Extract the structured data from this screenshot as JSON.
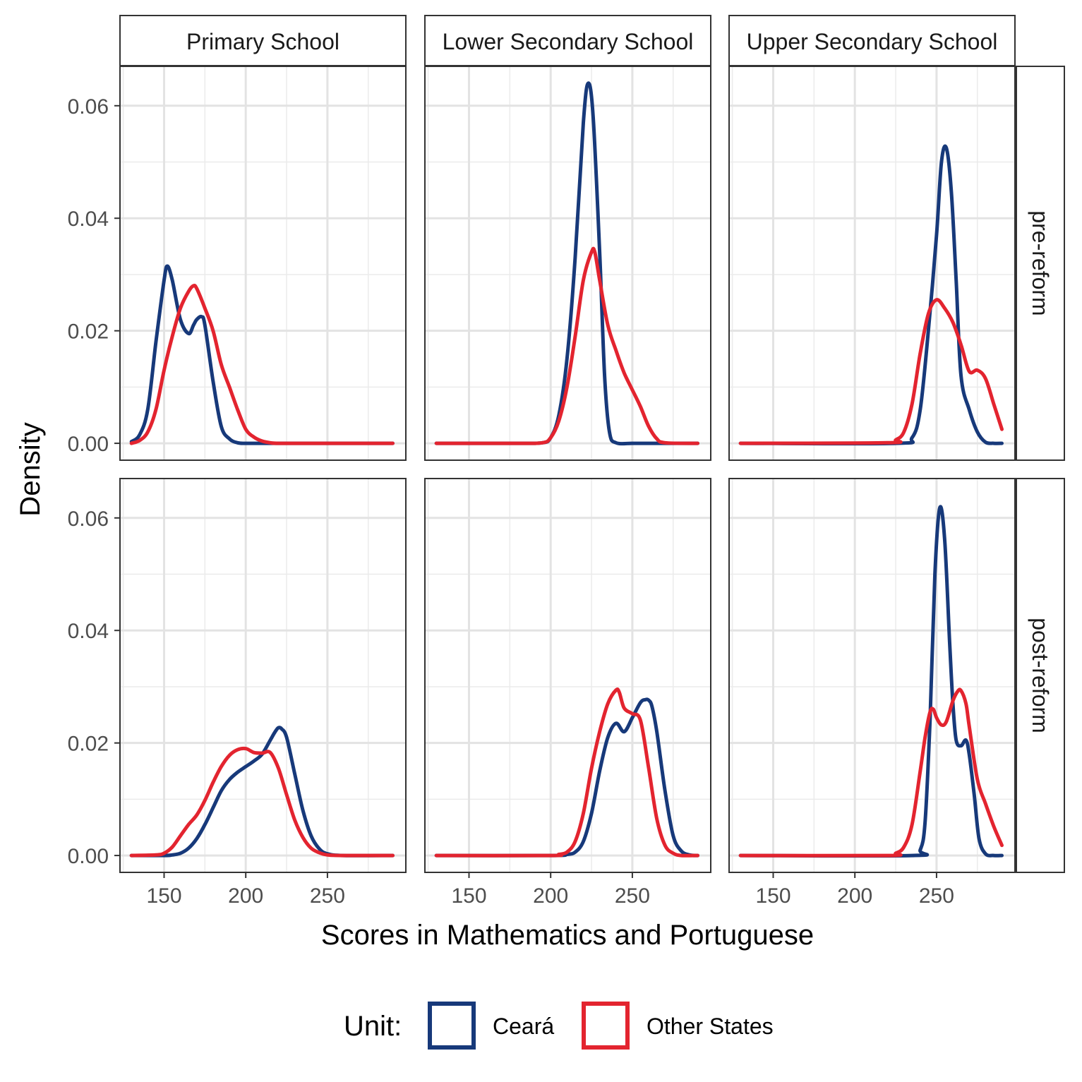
{
  "chart_data": {
    "type": "line",
    "subtype": "density-facets",
    "xlabel": "Scores in Mathematics and Portuguese",
    "ylabel": "Density",
    "xlim": [
      123,
      298
    ],
    "ylim": [
      -0.003,
      0.067
    ],
    "x_ticks": [
      150,
      200,
      250
    ],
    "x_tick_labels": [
      "150",
      "200",
      "250"
    ],
    "y_ticks": [
      0,
      0.02,
      0.04,
      0.06
    ],
    "y_tick_labels": [
      "0.00",
      "0.02",
      "0.04",
      "0.06"
    ],
    "columns": [
      "Primary School",
      "Lower Secondary School",
      "Upper Secondary School"
    ],
    "rows": [
      "pre-reform",
      "post-reform"
    ],
    "grid": true,
    "legend": {
      "title": "Unit:",
      "position": "bottom",
      "entries": [
        {
          "name": "Ceará",
          "color": "#17397a"
        },
        {
          "name": "Other States",
          "color": "#e3242f"
        }
      ]
    },
    "panels": [
      {
        "column": "Primary School",
        "row": "pre-reform",
        "series": [
          {
            "name": "Ceará",
            "x": [
              130,
              135,
              140,
              145,
              150,
              152,
              155,
              160,
              165,
              168,
              170,
              173,
              175,
              180,
              185,
              190,
              195,
              200,
              210,
              220,
              240,
              260,
              290
            ],
            "y": [
              0.0003,
              0.0015,
              0.006,
              0.018,
              0.029,
              0.0315,
              0.029,
              0.022,
              0.0195,
              0.021,
              0.022,
              0.0225,
              0.021,
              0.011,
              0.003,
              0.0008,
              0.0001,
              0,
              0,
              0,
              0,
              0,
              0
            ]
          },
          {
            "name": "Other States",
            "x": [
              130,
              135,
              140,
              145,
              150,
              155,
              160,
              165,
              168,
              170,
              175,
              180,
              185,
              190,
              195,
              200,
              205,
              210,
              215,
              220,
              240,
              260,
              290
            ],
            "y": [
              0,
              0.0005,
              0.002,
              0.006,
              0.013,
              0.019,
              0.024,
              0.027,
              0.028,
              0.0275,
              0.024,
              0.02,
              0.014,
              0.01,
              0.006,
              0.0025,
              0.0011,
              0.0004,
              0.0001,
              0,
              0,
              0,
              0
            ]
          }
        ]
      },
      {
        "column": "Lower Secondary School",
        "row": "pre-reform",
        "series": [
          {
            "name": "Ceará",
            "x": [
              130,
              180,
              195,
              200,
              205,
              210,
              215,
              220,
              223,
              226,
              230,
              233,
              236,
              240,
              250,
              260,
              290
            ],
            "y": [
              0,
              0,
              0.0001,
              0.001,
              0.005,
              0.015,
              0.033,
              0.057,
              0.064,
              0.058,
              0.034,
              0.012,
              0.002,
              0.0001,
              0,
              0,
              0
            ]
          },
          {
            "name": "Other States",
            "x": [
              130,
              180,
              195,
              200,
              205,
              210,
              215,
              220,
              225,
              227,
              230,
              235,
              240,
              245,
              250,
              255,
              260,
              265,
              270,
              290
            ],
            "y": [
              0,
              0,
              0.0001,
              0.001,
              0.004,
              0.01,
              0.019,
              0.029,
              0.034,
              0.034,
              0.029,
              0.021,
              0.0165,
              0.0125,
              0.0095,
              0.0065,
              0.003,
              0.0008,
              0.0001,
              0
            ]
          }
        ]
      },
      {
        "column": "Upper Secondary School",
        "row": "pre-reform",
        "series": [
          {
            "name": "Ceará",
            "x": [
              130,
              225,
              235,
              240,
              245,
              250,
              253,
              256,
              259,
              262,
              265,
              270,
              275,
              280,
              285,
              290
            ],
            "y": [
              0,
              0,
              0.001,
              0.006,
              0.02,
              0.037,
              0.05,
              0.0525,
              0.045,
              0.029,
              0.012,
              0.006,
              0.002,
              0.0002,
              0,
              0
            ]
          },
          {
            "name": "Other States",
            "x": [
              130,
              220,
              225,
              230,
              235,
              240,
              245,
              250,
              255,
              260,
              265,
              270,
              275,
              280,
              285,
              290
            ],
            "y": [
              0,
              0.0001,
              0.0006,
              0.002,
              0.007,
              0.016,
              0.023,
              0.0255,
              0.024,
              0.0215,
              0.0175,
              0.0128,
              0.013,
              0.0115,
              0.007,
              0.0025
            ]
          }
        ]
      },
      {
        "column": "Primary School",
        "row": "post-reform",
        "series": [
          {
            "name": "Ceará",
            "x": [
              130,
              150,
              155,
              160,
              165,
              170,
              175,
              180,
              185,
              190,
              195,
              200,
              205,
              210,
              215,
              218,
              220,
              222,
              225,
              230,
              235,
              240,
              245,
              250,
              260,
              290
            ],
            "y": [
              0,
              0,
              0.0001,
              0.0004,
              0.0013,
              0.003,
              0.0055,
              0.0085,
              0.0115,
              0.0135,
              0.0148,
              0.0158,
              0.0168,
              0.018,
              0.0205,
              0.022,
              0.0227,
              0.0225,
              0.021,
              0.0145,
              0.008,
              0.0035,
              0.0012,
              0.0003,
              0,
              0
            ]
          },
          {
            "name": "Other States",
            "x": [
              130,
              145,
              150,
              155,
              160,
              165,
              170,
              175,
              180,
              185,
              190,
              195,
              200,
              205,
              210,
              215,
              220,
              225,
              230,
              235,
              240,
              245,
              250,
              260,
              290
            ],
            "y": [
              0,
              0.0001,
              0.0004,
              0.0015,
              0.0035,
              0.0055,
              0.0072,
              0.0098,
              0.013,
              0.0158,
              0.0178,
              0.0188,
              0.019,
              0.0183,
              0.0182,
              0.0183,
              0.0155,
              0.0108,
              0.0063,
              0.0032,
              0.0013,
              0.0005,
              0.0001,
              0,
              0
            ]
          }
        ]
      },
      {
        "column": "Lower Secondary School",
        "row": "post-reform",
        "series": [
          {
            "name": "Ceará",
            "x": [
              130,
              200,
              210,
              215,
              220,
              225,
              230,
              235,
              240,
              245,
              250,
              255,
              258,
              260,
              262,
              265,
              270,
              275,
              280,
              285,
              290
            ],
            "y": [
              0,
              0,
              0.0002,
              0.0006,
              0.0025,
              0.0075,
              0.015,
              0.021,
              0.0235,
              0.022,
              0.0245,
              0.0272,
              0.0277,
              0.0276,
              0.0265,
              0.022,
              0.0115,
              0.0035,
              0.0008,
              0.0001,
              0
            ]
          },
          {
            "name": "Other States",
            "x": [
              130,
              200,
              205,
              210,
              215,
              220,
              225,
              230,
              235,
              240,
              242,
              245,
              250,
              255,
              260,
              265,
              270,
              275,
              280,
              290
            ],
            "y": [
              0,
              0,
              0.0002,
              0.0006,
              0.0025,
              0.0075,
              0.0155,
              0.022,
              0.027,
              0.0294,
              0.029,
              0.0262,
              0.0252,
              0.024,
              0.0155,
              0.0065,
              0.0018,
              0.0004,
              0,
              0
            ]
          }
        ]
      },
      {
        "column": "Upper Secondary School",
        "row": "post-reform",
        "series": [
          {
            "name": "Ceará",
            "x": [
              130,
              235,
              240,
              243,
              246,
              249,
              252,
              255,
              258,
              260,
              262,
              265,
              268,
              270,
              273,
              276,
              280,
              285,
              290
            ],
            "y": [
              0,
              0,
              0.001,
              0.006,
              0.024,
              0.05,
              0.0618,
              0.056,
              0.038,
              0.027,
              0.0205,
              0.0195,
              0.0205,
              0.018,
              0.011,
              0.003,
              0.0003,
              0,
              0
            ]
          },
          {
            "name": "Other States",
            "x": [
              130,
              220,
              225,
              230,
              235,
              240,
              243,
              246,
              248,
              250,
              253,
              256,
              260,
              263,
              265,
              268,
              270,
              275,
              280,
              285,
              290
            ],
            "y": [
              0,
              0,
              0.0004,
              0.0015,
              0.0055,
              0.015,
              0.021,
              0.0255,
              0.026,
              0.0245,
              0.0232,
              0.0238,
              0.0275,
              0.0292,
              0.0293,
              0.027,
              0.023,
              0.0135,
              0.0092,
              0.0052,
              0.0018
            ]
          }
        ]
      }
    ]
  }
}
